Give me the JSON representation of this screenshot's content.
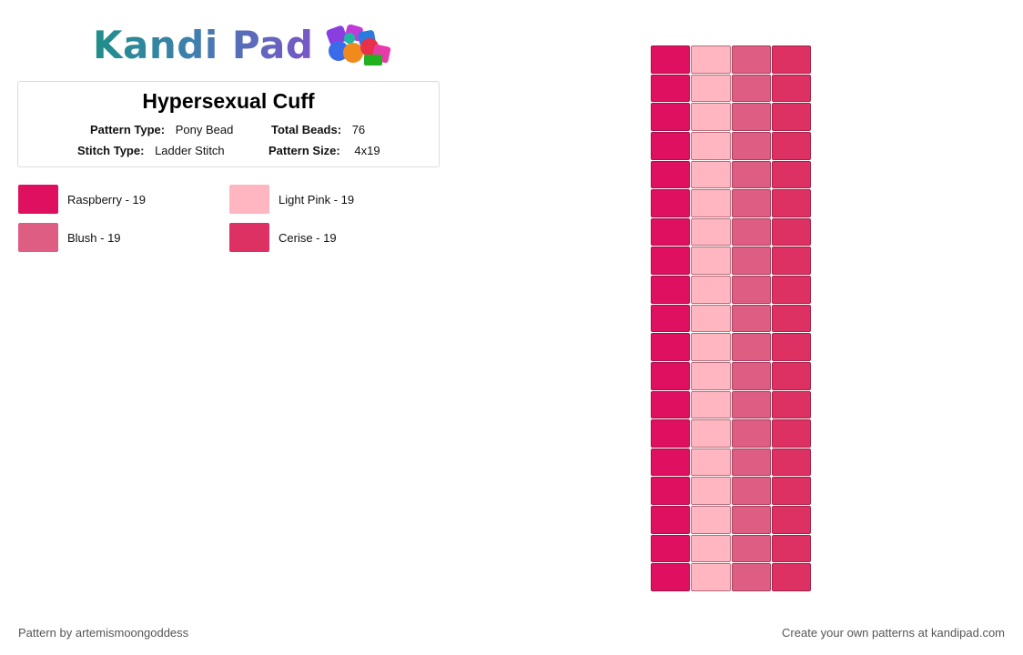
{
  "logo": {
    "text": "Kandi Pad",
    "icon": "bead-pile-icon"
  },
  "pattern": {
    "title": "Hypersexual Cuff",
    "pattern_type_label": "Pattern Type:",
    "pattern_type": "Pony Bead",
    "total_beads_label": "Total Beads:",
    "total_beads": "76",
    "stitch_type_label": "Stitch Type:",
    "stitch_type": "Ladder Stitch",
    "pattern_size_label": "Pattern Size:",
    "pattern_size": "4x19"
  },
  "legend": [
    {
      "label": "Raspberry - 19",
      "color": "#e01060"
    },
    {
      "label": "Light Pink - 19",
      "color": "#ffb6c1"
    },
    {
      "label": "Blush - 19",
      "color": "#de5d83"
    },
    {
      "label": "Cerise - 19",
      "color": "#de3163"
    }
  ],
  "bead_grid": {
    "columns": 4,
    "rows": 19,
    "column_colors": [
      "#e01060",
      "#ffb6c1",
      "#de5d83",
      "#de3163"
    ]
  },
  "footer": {
    "credit": "Pattern by artemismoongoddess",
    "cta": "Create your own patterns at kandipad.com"
  }
}
